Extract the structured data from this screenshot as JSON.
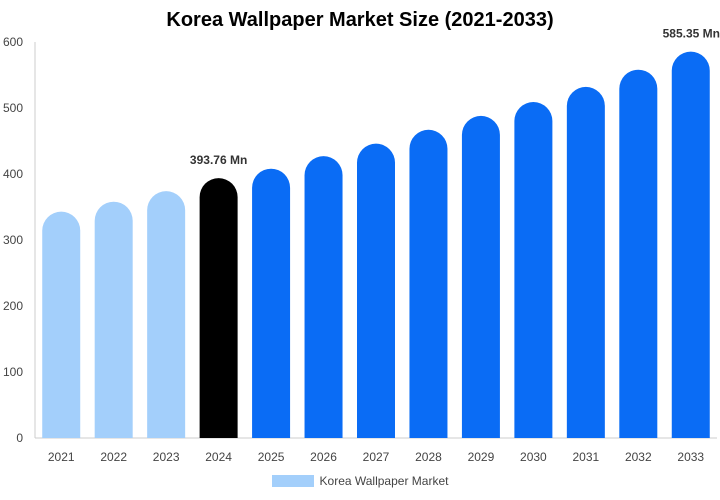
{
  "chart_data": {
    "type": "bar",
    "title": "Korea Wallpaper Market Size (2021-2033)",
    "xlabel": "",
    "ylabel": "",
    "categories": [
      "2021",
      "2022",
      "2023",
      "2024",
      "2025",
      "2026",
      "2027",
      "2028",
      "2029",
      "2030",
      "2031",
      "2032",
      "2033"
    ],
    "series": [
      {
        "name": "Korea Wallpaper Market",
        "values": [
          343,
          358,
          374,
          393.76,
          408,
          427,
          446,
          467,
          488,
          509,
          532,
          558,
          585.35
        ]
      }
    ],
    "ylim": [
      0,
      600
    ],
    "yticks": [
      0,
      100,
      200,
      300,
      400,
      500,
      600
    ],
    "grid": false,
    "legend_position": "bottom",
    "annotations": [
      {
        "category": "2024",
        "text": "393.76 Mn"
      },
      {
        "category": "2033",
        "text": "585.35 Mn"
      }
    ],
    "colors": {
      "historical": "#a3cffb",
      "base_year": "#000000",
      "forecast": "#0a6cf5",
      "axis": "#cccccc",
      "tick_text": "#444444"
    },
    "bar_color_groups": [
      "historical",
      "historical",
      "historical",
      "base_year",
      "forecast",
      "forecast",
      "forecast",
      "forecast",
      "forecast",
      "forecast",
      "forecast",
      "forecast",
      "forecast"
    ]
  }
}
